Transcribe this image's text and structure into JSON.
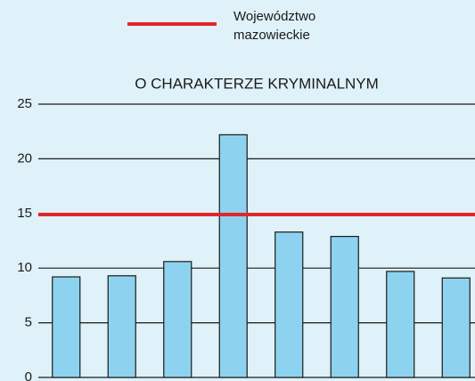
{
  "chart_data": {
    "type": "bar",
    "title": "O CHARAKTERZE KRYMINALNYM",
    "categories": [
      null,
      null,
      null,
      null,
      null,
      null,
      null,
      null
    ],
    "values": [
      9.2,
      9.3,
      10.6,
      22.2,
      13.3,
      12.9,
      9.7,
      9.1
    ],
    "color": "#8dd3f0",
    "ylim": [
      0,
      25
    ],
    "yticks": [
      0,
      5,
      10,
      15,
      20,
      25
    ],
    "grid": true,
    "reference_line": {
      "name": "Województwo mazowieckie",
      "value": 14.9,
      "color": "#e0262b"
    },
    "legend": "top"
  }
}
